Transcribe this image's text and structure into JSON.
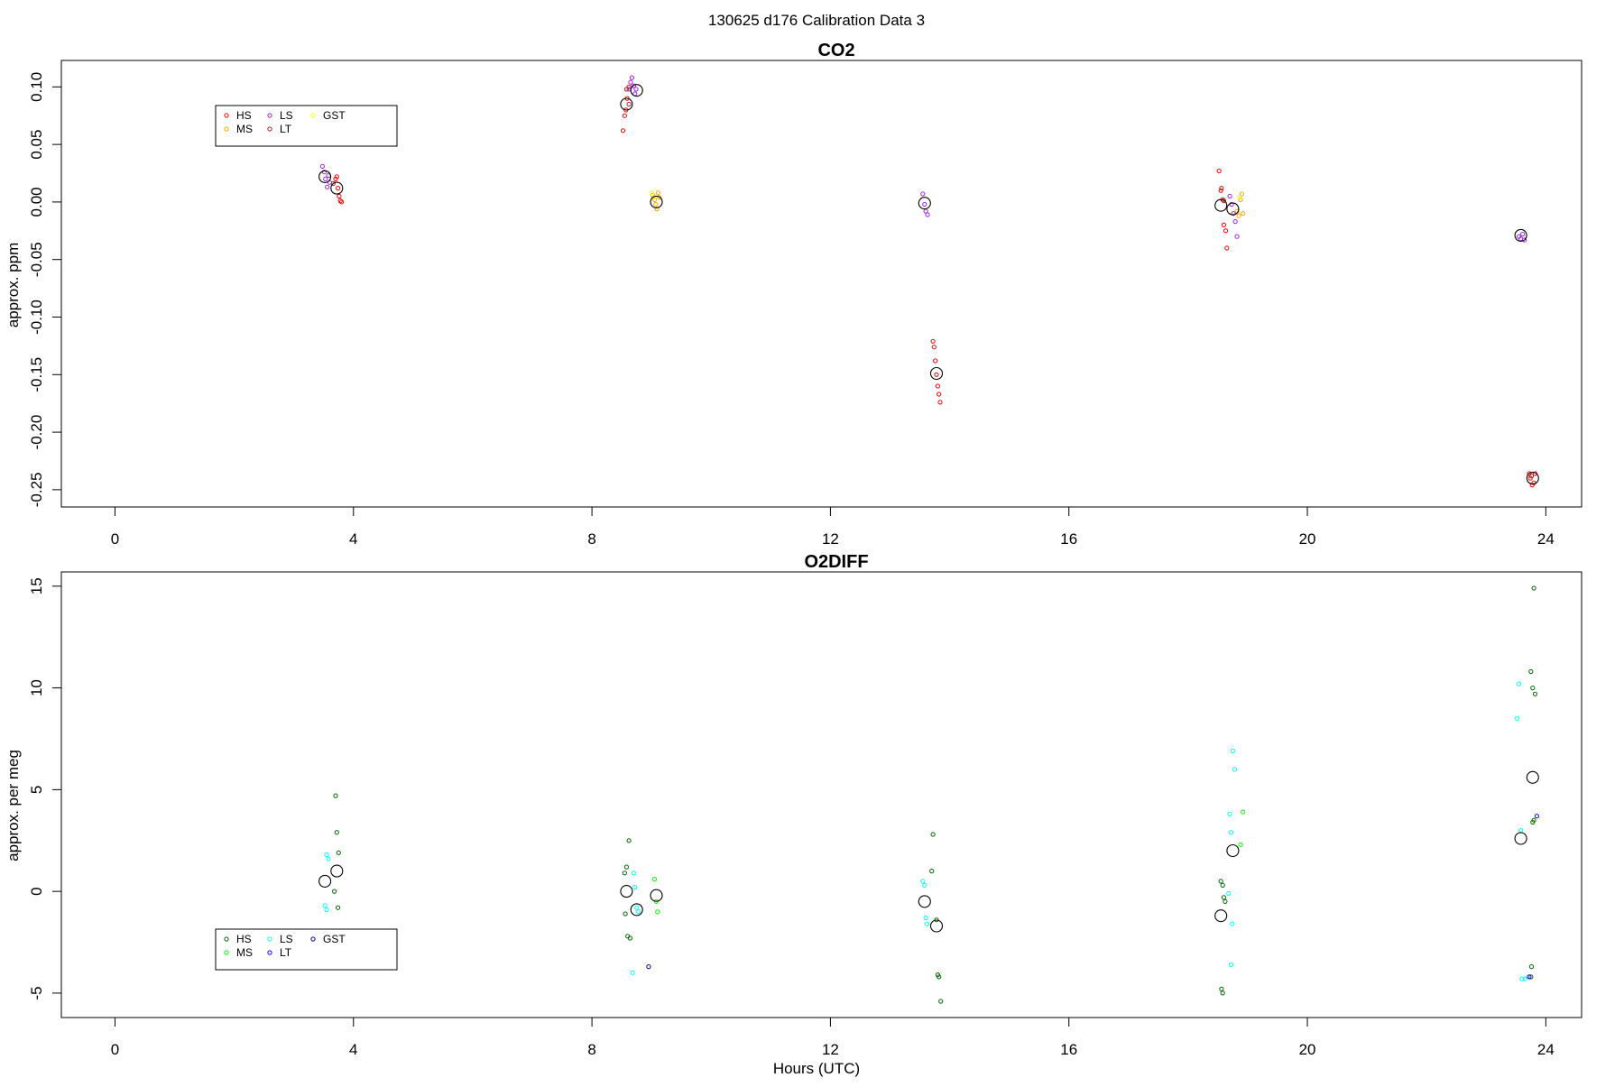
{
  "figure": {
    "title": "130625   d176   Calibration Data 3"
  },
  "chart_data": [
    {
      "type": "scatter",
      "title": "CO2",
      "xlabel": "",
      "ylabel": "approx. ppm",
      "xlim": [
        -0.9,
        24.6
      ],
      "ylim": [
        -0.265,
        0.123
      ],
      "xticks": [
        0,
        4,
        8,
        12,
        16,
        20,
        24
      ],
      "yticks": [
        0.1,
        0.05,
        0.0,
        -0.05,
        -0.1,
        -0.15,
        -0.2,
        -0.25
      ],
      "yticklabels": [
        "0.10",
        "0.05",
        "0.00",
        "-0.05",
        "-0.10",
        "-0.15",
        "-0.20",
        "-0.25"
      ],
      "xticklabels": [
        "0",
        "4",
        "8",
        "12",
        "16",
        "20",
        "24"
      ],
      "legend": {
        "placement": "top-left",
        "entries": [
          {
            "name": "HS",
            "color": "#ff0000"
          },
          {
            "name": "MS",
            "color": "#ffa500"
          },
          {
            "name": "LS",
            "color": "#a020f0"
          },
          {
            "name": "LT",
            "color": "#b22222"
          },
          {
            "name": "GST",
            "color": "#ffff00"
          }
        ]
      },
      "series": [
        {
          "name": "HS",
          "color": "#ff0000",
          "points": [
            [
              3.7,
              0.02
            ],
            [
              3.74,
              0.012
            ],
            [
              3.76,
              0.005
            ],
            [
              3.78,
              0.001
            ],
            [
              3.8,
              0.0
            ],
            [
              3.72,
              0.022
            ],
            [
              8.52,
              0.062
            ],
            [
              8.55,
              0.075
            ],
            [
              8.57,
              0.08
            ],
            [
              8.59,
              0.09
            ],
            [
              8.62,
              0.1
            ],
            [
              13.72,
              -0.121
            ],
            [
              13.74,
              -0.126
            ],
            [
              13.76,
              -0.138
            ],
            [
              13.78,
              -0.15
            ],
            [
              13.8,
              -0.16
            ],
            [
              13.82,
              -0.167
            ],
            [
              13.84,
              -0.174
            ],
            [
              18.52,
              0.027
            ],
            [
              18.55,
              0.01
            ],
            [
              18.58,
              0.002
            ],
            [
              18.6,
              -0.02
            ],
            [
              18.63,
              -0.025
            ],
            [
              18.65,
              -0.04
            ],
            [
              23.72,
              -0.236
            ],
            [
              23.74,
              -0.24
            ],
            [
              23.77,
              -0.246
            ],
            [
              23.8,
              -0.244
            ],
            [
              23.82,
              -0.236
            ]
          ]
        },
        {
          "name": "MS",
          "color": "#ffa500",
          "points": [
            [
              9.02,
              0.006
            ],
            [
              9.05,
              0.002
            ],
            [
              9.07,
              -0.002
            ],
            [
              9.09,
              -0.006
            ],
            [
              9.11,
              0.008
            ],
            [
              9.13,
              0.004
            ],
            [
              18.82,
              -0.008
            ],
            [
              18.85,
              -0.012
            ],
            [
              18.88,
              0.002
            ],
            [
              18.9,
              0.007
            ],
            [
              18.92,
              -0.01
            ]
          ]
        },
        {
          "name": "LS",
          "color": "#a020f0",
          "points": [
            [
              3.48,
              0.031
            ],
            [
              3.51,
              0.026
            ],
            [
              3.53,
              0.02
            ],
            [
              3.56,
              0.013
            ],
            [
              3.58,
              0.023
            ],
            [
              3.6,
              0.017
            ],
            [
              8.62,
              0.098
            ],
            [
              8.65,
              0.104
            ],
            [
              8.67,
              0.108
            ],
            [
              8.7,
              0.101
            ],
            [
              8.72,
              0.094
            ],
            [
              8.74,
              0.098
            ],
            [
              13.55,
              0.007
            ],
            [
              13.58,
              -0.002
            ],
            [
              13.6,
              -0.008
            ],
            [
              13.63,
              -0.011
            ],
            [
              18.7,
              0.005
            ],
            [
              18.73,
              -0.002
            ],
            [
              18.76,
              -0.01
            ],
            [
              18.79,
              -0.017
            ],
            [
              18.82,
              -0.03
            ],
            [
              23.55,
              -0.03
            ],
            [
              23.58,
              -0.032
            ],
            [
              23.61,
              -0.028
            ],
            [
              23.64,
              -0.033
            ]
          ]
        },
        {
          "name": "LT",
          "color": "#b22222",
          "points": [
            [
              8.58,
              0.098
            ],
            [
              8.62,
              0.085
            ],
            [
              18.56,
              0.012
            ],
            [
              18.6,
              0.001
            ],
            [
              3.66,
              0.016
            ],
            [
              23.76,
              -0.238
            ]
          ]
        },
        {
          "name": "GST",
          "color": "#ffff00",
          "points": [
            [
              9.0,
              0.008
            ],
            [
              9.04,
              0.004
            ],
            [
              18.86,
              0.004
            ]
          ]
        },
        {
          "name": "mean",
          "color": "#000000",
          "marker": "large-circle",
          "points": [
            [
              3.52,
              0.022
            ],
            [
              3.72,
              0.012
            ],
            [
              8.58,
              0.085
            ],
            [
              8.75,
              0.097
            ],
            [
              9.08,
              0.0
            ],
            [
              13.58,
              -0.001
            ],
            [
              13.78,
              -0.149
            ],
            [
              18.55,
              -0.003
            ],
            [
              18.75,
              -0.006
            ],
            [
              23.58,
              -0.029
            ],
            [
              23.78,
              -0.24
            ]
          ]
        }
      ]
    },
    {
      "type": "scatter",
      "title": "O2DIFF",
      "xlabel": "Hours (UTC)",
      "ylabel": "approx. per meg",
      "xlim": [
        -0.9,
        24.6
      ],
      "ylim": [
        -6.2,
        15.7
      ],
      "xticks": [
        0,
        4,
        8,
        12,
        16,
        20,
        24
      ],
      "xticklabels": [
        "0",
        "4",
        "8",
        "12",
        "16",
        "20",
        "24"
      ],
      "yticks": [
        15,
        10,
        5,
        0,
        -5
      ],
      "yticklabels": [
        "15",
        "10",
        "5",
        "0",
        "-5"
      ],
      "legend": {
        "placement": "bottom-left",
        "entries": [
          {
            "name": "HS",
            "color": "#006400"
          },
          {
            "name": "MS",
            "color": "#00ff00"
          },
          {
            "name": "LS",
            "color": "#00ffff"
          },
          {
            "name": "LT",
            "color": "#0000ff"
          },
          {
            "name": "GST",
            "color": "#00008b"
          }
        ]
      },
      "series": [
        {
          "name": "HS",
          "color": "#006400",
          "points": [
            [
              3.7,
              4.7
            ],
            [
              3.72,
              2.9
            ],
            [
              3.75,
              1.9
            ],
            [
              3.68,
              0.0
            ],
            [
              3.74,
              -0.8
            ],
            [
              8.55,
              0.9
            ],
            [
              8.58,
              1.2
            ],
            [
              8.62,
              2.5
            ],
            [
              8.6,
              -2.2
            ],
            [
              8.64,
              -2.3
            ],
            [
              8.56,
              -1.1
            ],
            [
              13.72,
              2.8
            ],
            [
              13.7,
              1.0
            ],
            [
              13.78,
              -1.4
            ],
            [
              13.8,
              -4.1
            ],
            [
              13.82,
              -4.2
            ],
            [
              13.85,
              -5.4
            ],
            [
              18.55,
              0.5
            ],
            [
              18.58,
              0.3
            ],
            [
              18.6,
              -0.3
            ],
            [
              18.62,
              -0.5
            ],
            [
              18.56,
              -4.8
            ],
            [
              18.58,
              -5.0
            ],
            [
              23.8,
              14.9
            ],
            [
              23.75,
              10.8
            ],
            [
              23.78,
              10.0
            ],
            [
              23.82,
              9.7
            ],
            [
              23.78,
              3.4
            ],
            [
              23.8,
              3.5
            ],
            [
              23.76,
              -3.7
            ],
            [
              23.75,
              -4.2
            ]
          ]
        },
        {
          "name": "MS",
          "color": "#00ff00",
          "points": [
            [
              9.05,
              0.6
            ],
            [
              9.08,
              -0.5
            ],
            [
              9.1,
              -1.0
            ],
            [
              18.92,
              3.9
            ],
            [
              18.88,
              2.3
            ]
          ]
        },
        {
          "name": "LS",
          "color": "#00ffff",
          "points": [
            [
              3.55,
              1.8
            ],
            [
              3.58,
              1.6
            ],
            [
              3.52,
              -0.7
            ],
            [
              3.55,
              -0.9
            ],
            [
              8.7,
              0.9
            ],
            [
              8.72,
              0.2
            ],
            [
              8.75,
              -0.8
            ],
            [
              8.68,
              -4.0
            ],
            [
              8.78,
              -1.0
            ],
            [
              13.55,
              0.5
            ],
            [
              13.58,
              0.3
            ],
            [
              13.6,
              -1.3
            ],
            [
              13.62,
              -1.6
            ],
            [
              18.75,
              6.9
            ],
            [
              18.78,
              6.0
            ],
            [
              18.7,
              3.8
            ],
            [
              18.72,
              2.9
            ],
            [
              18.68,
              -0.1
            ],
            [
              18.74,
              -1.6
            ],
            [
              18.72,
              -3.6
            ],
            [
              23.55,
              10.2
            ],
            [
              23.52,
              8.5
            ],
            [
              23.58,
              3.0
            ],
            [
              23.6,
              -4.3
            ],
            [
              23.65,
              -4.3
            ]
          ]
        },
        {
          "name": "LT",
          "color": "#0000ff",
          "points": [
            [
              23.85,
              3.7
            ],
            [
              23.72,
              -4.2
            ]
          ]
        },
        {
          "name": "GST",
          "color": "#00008b",
          "points": [
            [
              8.95,
              -3.7
            ]
          ]
        },
        {
          "name": "mean",
          "color": "#000000",
          "marker": "large-circle",
          "points": [
            [
              3.52,
              0.5
            ],
            [
              3.72,
              1.0
            ],
            [
              8.58,
              0.0
            ],
            [
              8.75,
              -0.9
            ],
            [
              9.08,
              -0.2
            ],
            [
              13.58,
              -0.5
            ],
            [
              13.78,
              -1.7
            ],
            [
              18.55,
              -1.2
            ],
            [
              18.75,
              2.0
            ],
            [
              23.58,
              2.6
            ],
            [
              23.78,
              5.6
            ]
          ]
        }
      ]
    }
  ]
}
